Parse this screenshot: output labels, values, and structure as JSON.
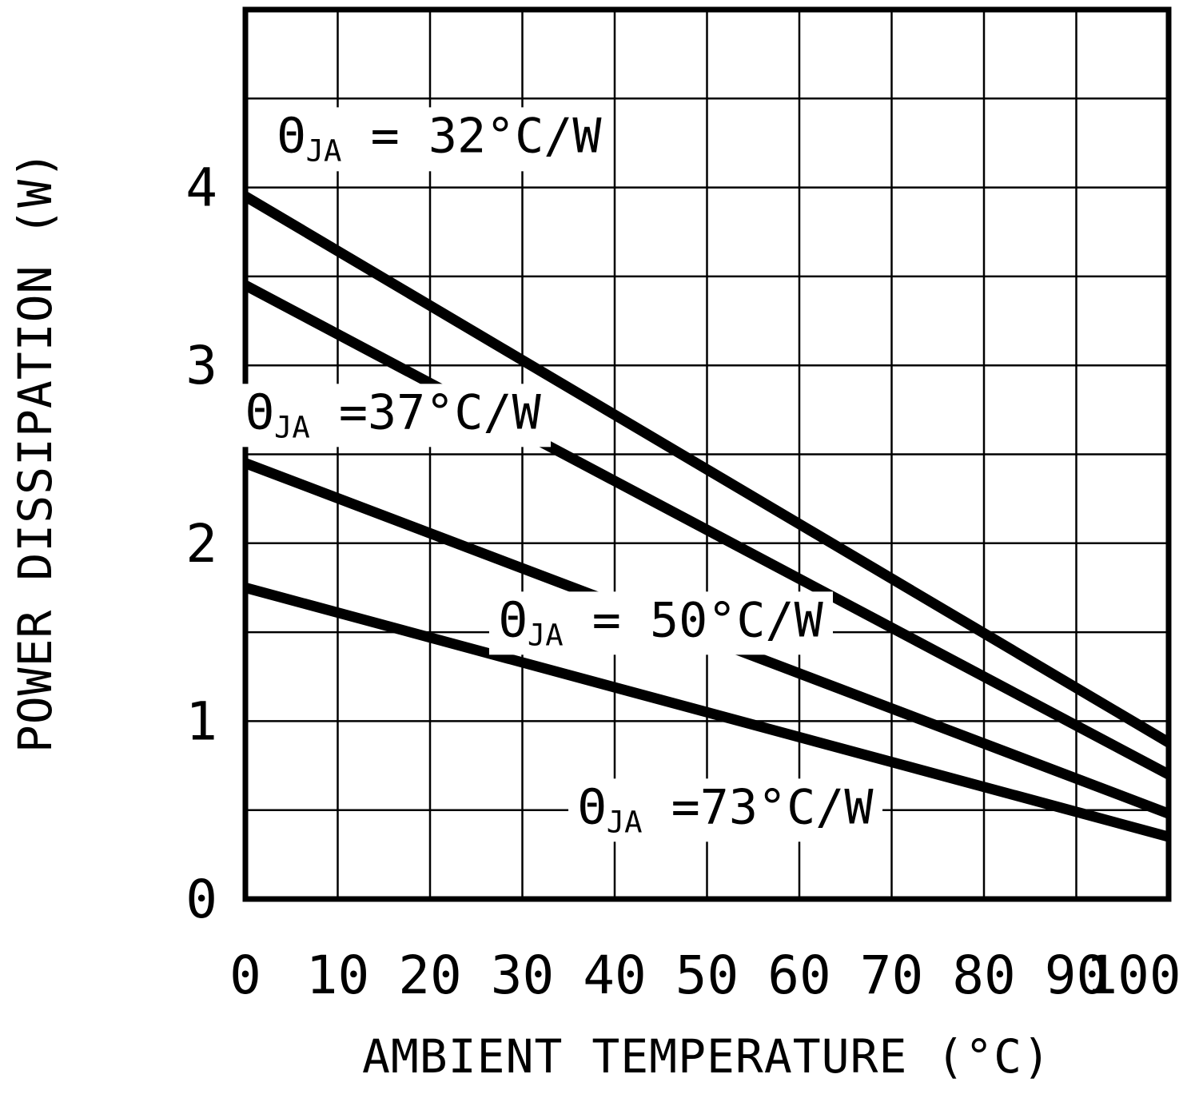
{
  "chart_data": {
    "type": "line",
    "title": "",
    "xlabel": "AMBIENT TEMPERATURE (°C)",
    "ylabel": "POWER DISSIPATION (W)",
    "xlim": [
      0,
      100
    ],
    "ylim": [
      0,
      5
    ],
    "x_ticks": [
      0,
      10,
      20,
      30,
      40,
      50,
      60,
      70,
      80,
      90,
      100
    ],
    "y_ticks": [
      0,
      1,
      2,
      3,
      4
    ],
    "x_grid_step": 10,
    "y_grid_step": 0.5,
    "grid": true,
    "legend_position": "inline-labels",
    "line_color": "#000000",
    "background": "#ffffff",
    "series": [
      {
        "id": "32",
        "theta_ja_c_per_w": 32,
        "label": {
          "symbol": "Θ",
          "sub": "JA",
          "rest": " = 32°C/W"
        },
        "points": [
          [
            0,
            3.95
          ],
          [
            100,
            0.88
          ]
        ],
        "label_pos": [
          21,
          4.27
        ]
      },
      {
        "id": "37",
        "theta_ja_c_per_w": 37,
        "label": {
          "symbol": "Θ",
          "sub": "JA",
          "rest": " =37°C/W"
        },
        "points": [
          [
            0,
            3.45
          ],
          [
            100,
            0.7
          ]
        ],
        "label_pos": [
          16,
          2.72
        ]
      },
      {
        "id": "50",
        "theta_ja_c_per_w": 50,
        "label": {
          "symbol": "Θ",
          "sub": "JA",
          "rest": " = 50°C/W"
        },
        "points": [
          [
            0,
            2.45
          ],
          [
            100,
            0.48
          ]
        ],
        "label_pos": [
          45,
          1.55
        ]
      },
      {
        "id": "73",
        "theta_ja_c_per_w": 73,
        "label": {
          "symbol": "Θ",
          "sub": "JA",
          "rest": " =73°C/W"
        },
        "points": [
          [
            0,
            1.75
          ],
          [
            100,
            0.35
          ]
        ],
        "label_pos": [
          52,
          0.5
        ]
      }
    ]
  }
}
